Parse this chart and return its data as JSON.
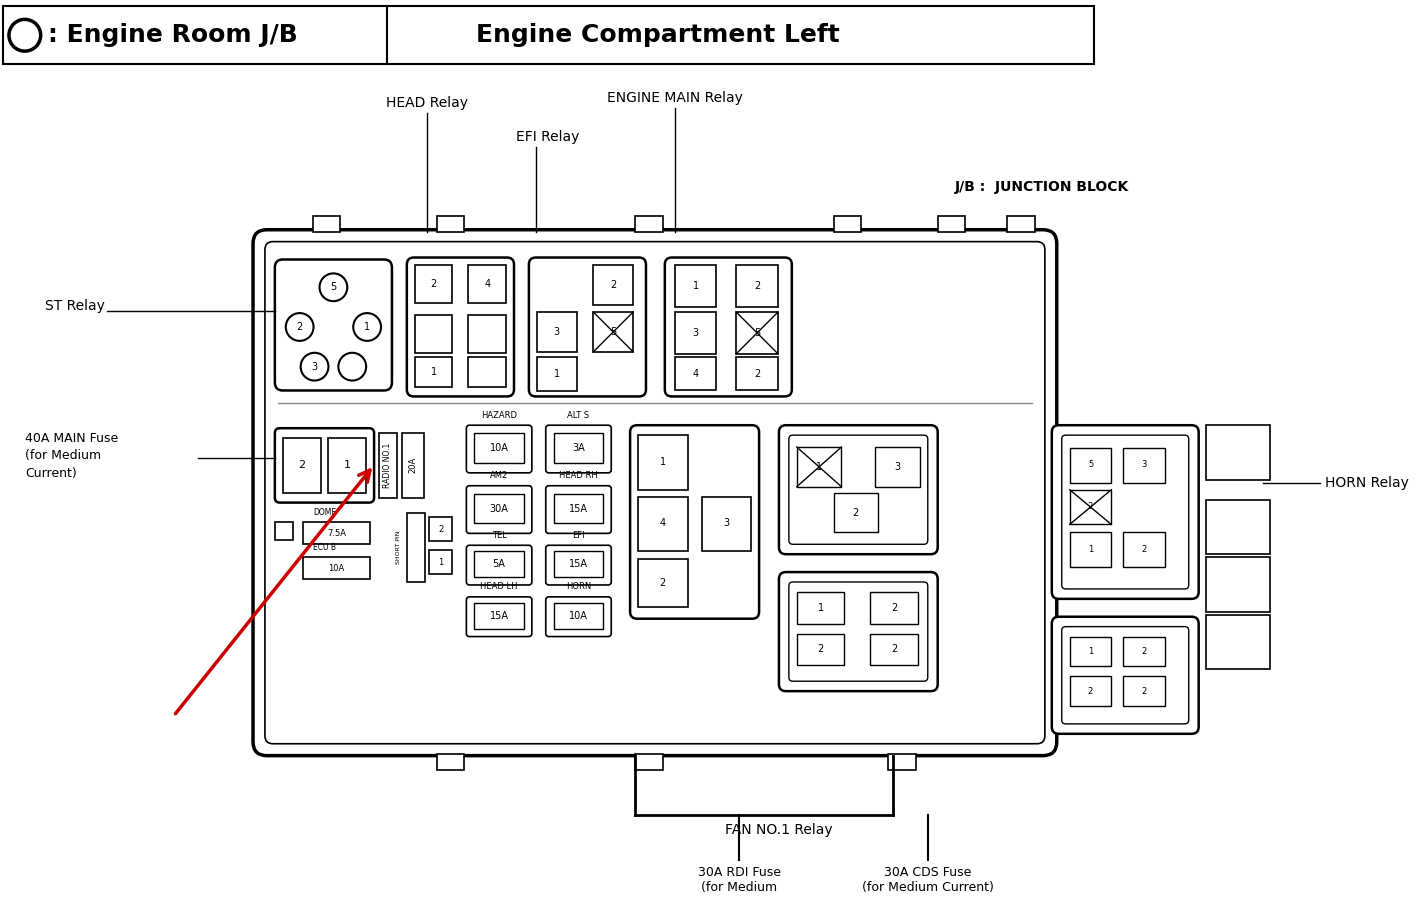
{
  "bg_color": "#ffffff",
  "title_text1": ": Engine Room J/B",
  "title_text2": "Engine Compartment Left",
  "label_HEAD": "HEAD Relay",
  "label_EFI": "EFI Relay",
  "label_ENGINE_MAIN": "ENGINE MAIN Relay",
  "label_JB": "J/B :  JUNCTION BLOCK",
  "label_ST": "ST Relay",
  "label_40A": "40A MAIN Fuse",
  "label_40A2": "(for Medium",
  "label_40A3": "Current)",
  "label_HORN": "HORN Relay",
  "label_FAN": "FAN NO.1 Relay",
  "label_30ARDI": "30A RDI Fuse",
  "label_30ARDI2": "(for Medium",
  "label_30ACDS": "30A CDS Fuse",
  "label_30ACDS2": "(for Medium Current)"
}
